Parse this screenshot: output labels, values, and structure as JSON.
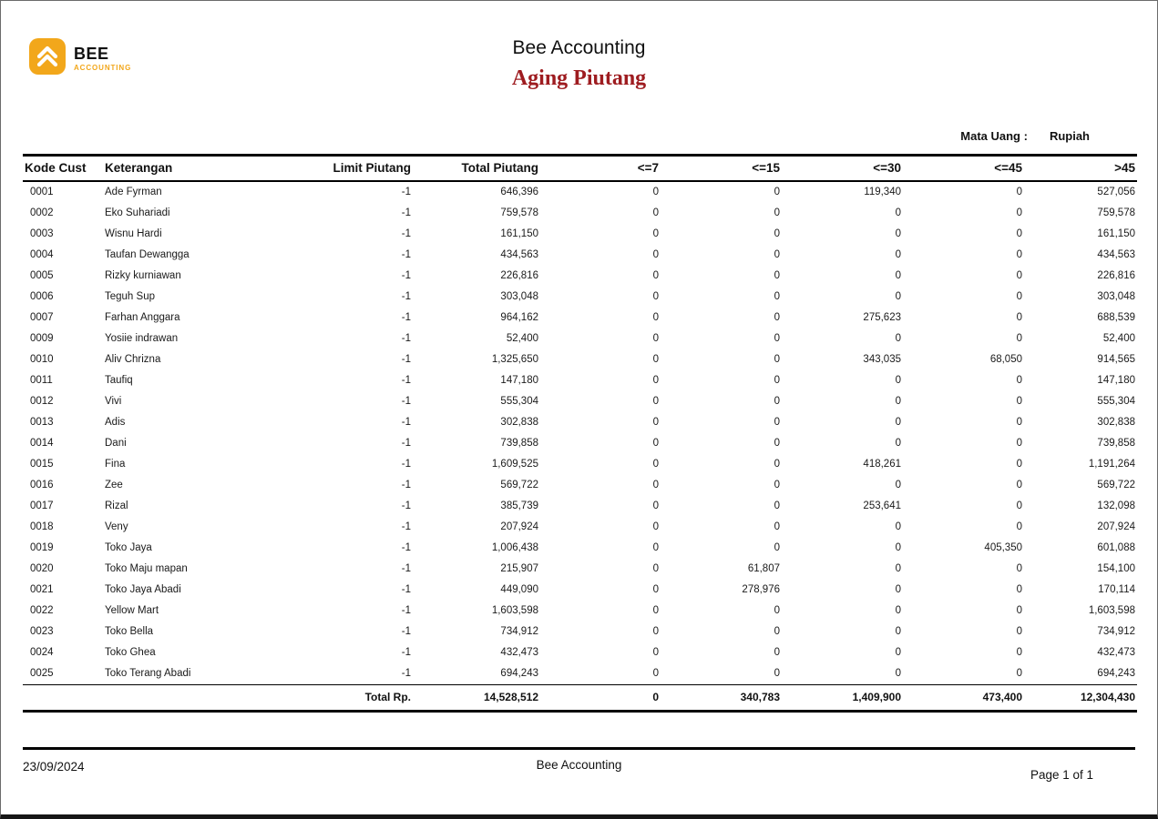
{
  "logo": {
    "name": "BEE",
    "subtitle": "ACCOUNTING",
    "icon": "bee-hexagon-logo-icon",
    "color": "#f2a71b"
  },
  "header": {
    "company": "Bee Accounting",
    "report_title": "Aging Piutang",
    "title_color": "#9e1c20",
    "currency_label": "Mata Uang :",
    "currency_value": "Rupiah"
  },
  "table": {
    "columns": [
      "Kode Cust",
      "Keterangan",
      "Limit Piutang",
      "Total Piutang",
      "<=7",
      "<=15",
      "<=30",
      "<=45",
      ">45"
    ],
    "column_keys": [
      "kode-cust",
      "keterangan",
      "limit-piutang",
      "total-piutang",
      "le7",
      "le15",
      "le30",
      "le45",
      "gt45"
    ],
    "rows": [
      [
        "0001",
        "Ade Fyrman",
        "-1",
        "646,396",
        "0",
        "0",
        "119,340",
        "0",
        "527,056"
      ],
      [
        "0002",
        "Eko Suhariadi",
        "-1",
        "759,578",
        "0",
        "0",
        "0",
        "0",
        "759,578"
      ],
      [
        "0003",
        "Wisnu Hardi",
        "-1",
        "161,150",
        "0",
        "0",
        "0",
        "0",
        "161,150"
      ],
      [
        "0004",
        "Taufan Dewangga",
        "-1",
        "434,563",
        "0",
        "0",
        "0",
        "0",
        "434,563"
      ],
      [
        "0005",
        "Rizky kurniawan",
        "-1",
        "226,816",
        "0",
        "0",
        "0",
        "0",
        "226,816"
      ],
      [
        "0006",
        "Teguh Sup",
        "-1",
        "303,048",
        "0",
        "0",
        "0",
        "0",
        "303,048"
      ],
      [
        "0007",
        "Farhan Anggara",
        "-1",
        "964,162",
        "0",
        "0",
        "275,623",
        "0",
        "688,539"
      ],
      [
        "0009",
        "Yosiie indrawan",
        "-1",
        "52,400",
        "0",
        "0",
        "0",
        "0",
        "52,400"
      ],
      [
        "0010",
        "Aliv Chrizna",
        "-1",
        "1,325,650",
        "0",
        "0",
        "343,035",
        "68,050",
        "914,565"
      ],
      [
        "0011",
        "Taufiq",
        "-1",
        "147,180",
        "0",
        "0",
        "0",
        "0",
        "147,180"
      ],
      [
        "0012",
        "Vivi",
        "-1",
        "555,304",
        "0",
        "0",
        "0",
        "0",
        "555,304"
      ],
      [
        "0013",
        "Adis",
        "-1",
        "302,838",
        "0",
        "0",
        "0",
        "0",
        "302,838"
      ],
      [
        "0014",
        "Dani",
        "-1",
        "739,858",
        "0",
        "0",
        "0",
        "0",
        "739,858"
      ],
      [
        "0015",
        "Fina",
        "-1",
        "1,609,525",
        "0",
        "0",
        "418,261",
        "0",
        "1,191,264"
      ],
      [
        "0016",
        "Zee",
        "-1",
        "569,722",
        "0",
        "0",
        "0",
        "0",
        "569,722"
      ],
      [
        "0017",
        "Rizal",
        "-1",
        "385,739",
        "0",
        "0",
        "253,641",
        "0",
        "132,098"
      ],
      [
        "0018",
        "Veny",
        "-1",
        "207,924",
        "0",
        "0",
        "0",
        "0",
        "207,924"
      ],
      [
        "0019",
        "Toko Jaya",
        "-1",
        "1,006,438",
        "0",
        "0",
        "0",
        "405,350",
        "601,088"
      ],
      [
        "0020",
        "Toko Maju mapan",
        "-1",
        "215,907",
        "0",
        "61,807",
        "0",
        "0",
        "154,100"
      ],
      [
        "0021",
        "Toko Jaya Abadi",
        "-1",
        "449,090",
        "0",
        "278,976",
        "0",
        "0",
        "170,114"
      ],
      [
        "0022",
        "Yellow Mart",
        "-1",
        "1,603,598",
        "0",
        "0",
        "0",
        "0",
        "1,603,598"
      ],
      [
        "0023",
        "Toko Bella",
        "-1",
        "734,912",
        "0",
        "0",
        "0",
        "0",
        "734,912"
      ],
      [
        "0024",
        "Toko Ghea",
        "-1",
        "432,473",
        "0",
        "0",
        "0",
        "0",
        "432,473"
      ],
      [
        "0025",
        "Toko Terang Abadi",
        "-1",
        "694,243",
        "0",
        "0",
        "0",
        "0",
        "694,243"
      ]
    ],
    "total": {
      "label": "Total Rp.",
      "values": [
        "14,528,512",
        "0",
        "340,783",
        "1,409,900",
        "473,400",
        "12,304,430"
      ]
    }
  },
  "footer": {
    "date": "23/09/2024",
    "company": "Bee Accounting",
    "page_label": "Page 1 of  1"
  }
}
